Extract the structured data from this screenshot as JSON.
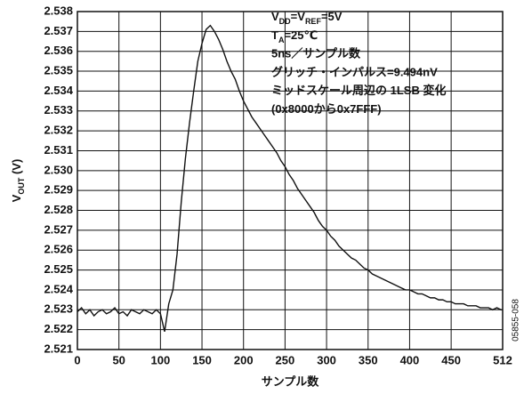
{
  "chart_data": {
    "type": "line",
    "x_label": "サンプル数",
    "y_label": [
      "V",
      "OUT",
      " (V)"
    ],
    "annotations": [
      [
        "V",
        "DD",
        "=V",
        "REF",
        "=5V"
      ],
      [
        "T",
        "A",
        "=25℃"
      ],
      [
        "5ns／サンプル数"
      ],
      [
        "グリッチ・インパルス=9.494nV"
      ],
      [
        "ミッドスケール周辺の 1LSB 変化"
      ],
      [
        "(0x8000から0x7FFF)"
      ]
    ],
    "side_note": "05855-058",
    "xlim": [
      0,
      512
    ],
    "xticks": [
      0,
      50,
      100,
      150,
      200,
      250,
      300,
      350,
      400,
      450,
      512
    ],
    "ylim": [
      2.521,
      2.538
    ],
    "yticks": [
      2.521,
      2.522,
      2.523,
      2.524,
      2.525,
      2.526,
      2.527,
      2.528,
      2.529,
      {
        "value": 2.53,
        "label": "2.530"
      },
      2.531,
      2.532,
      2.533,
      2.534,
      2.535,
      2.536,
      2.537,
      2.538
    ],
    "grid": true,
    "x": [
      0,
      5,
      10,
      15,
      20,
      25,
      30,
      35,
      40,
      45,
      50,
      55,
      60,
      65,
      70,
      75,
      80,
      85,
      90,
      95,
      100,
      105,
      110,
      115,
      120,
      125,
      130,
      135,
      140,
      145,
      150,
      155,
      160,
      165,
      170,
      175,
      180,
      185,
      190,
      195,
      200,
      205,
      210,
      215,
      220,
      225,
      230,
      235,
      240,
      245,
      250,
      255,
      260,
      265,
      270,
      275,
      280,
      285,
      290,
      295,
      300,
      305,
      310,
      315,
      320,
      325,
      330,
      335,
      340,
      345,
      350,
      355,
      360,
      365,
      370,
      375,
      380,
      385,
      390,
      395,
      400,
      405,
      410,
      415,
      420,
      425,
      430,
      435,
      440,
      445,
      450,
      455,
      460,
      465,
      470,
      475,
      480,
      485,
      490,
      495,
      500,
      505,
      510,
      512
    ],
    "series": [
      {
        "color": "#111111",
        "values": [
          2.5229,
          2.5231,
          2.5228,
          2.523,
          2.5227,
          2.5229,
          2.523,
          2.5228,
          2.5229,
          2.5231,
          2.5228,
          2.5229,
          2.5227,
          2.523,
          2.5229,
          2.5228,
          2.523,
          2.5229,
          2.5228,
          2.523,
          2.5228,
          2.5219,
          2.5233,
          2.524,
          2.5258,
          2.5284,
          2.5306,
          2.5324,
          2.534,
          2.5355,
          2.5364,
          2.5371,
          2.5373,
          2.537,
          2.5366,
          2.5361,
          2.5355,
          2.535,
          2.5346,
          2.534,
          2.5335,
          2.5331,
          2.5327,
          2.5324,
          2.5321,
          2.5318,
          2.5315,
          2.5312,
          2.5309,
          2.5305,
          2.5302,
          2.5298,
          2.5295,
          2.5291,
          2.5288,
          2.5285,
          2.5282,
          2.5279,
          2.5275,
          2.5272,
          2.527,
          2.5267,
          2.5265,
          2.5262,
          2.526,
          2.5258,
          2.5256,
          2.5255,
          2.5253,
          2.5251,
          2.525,
          2.5248,
          2.5247,
          2.5246,
          2.5245,
          2.5244,
          2.5243,
          2.5242,
          2.5241,
          2.524,
          2.524,
          2.5239,
          2.5238,
          2.5238,
          2.5237,
          2.5236,
          2.5236,
          2.5235,
          2.5235,
          2.5234,
          2.5234,
          2.5233,
          2.5233,
          2.5233,
          2.5232,
          2.5232,
          2.5232,
          2.5231,
          2.5231,
          2.5231,
          2.523,
          2.5231,
          2.523,
          2.523
        ]
      }
    ]
  }
}
